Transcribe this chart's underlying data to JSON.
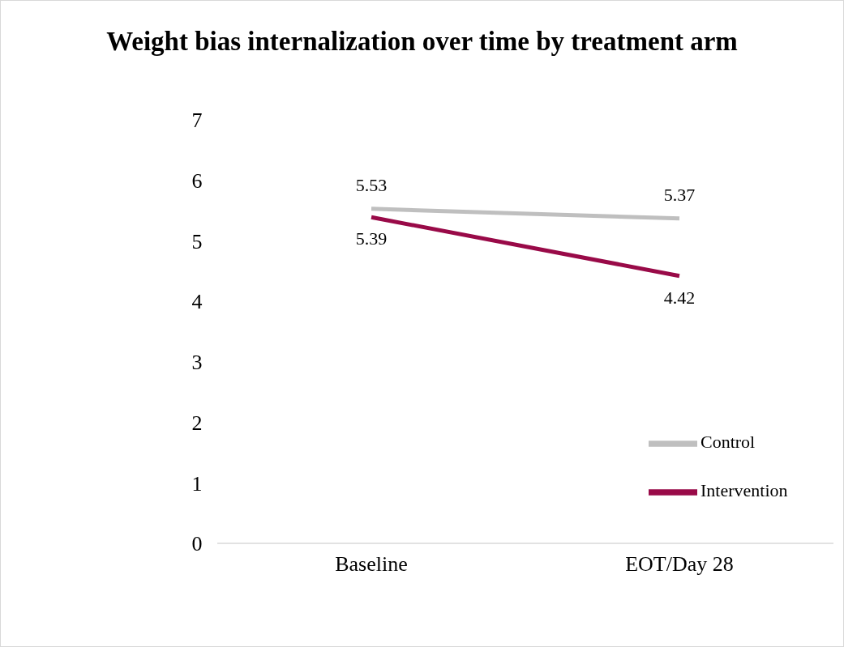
{
  "chart_data": {
    "type": "line",
    "title": "Weight bias internalization over time by treatment arm",
    "categories": [
      "Baseline",
      "EOT/Day 28"
    ],
    "series": [
      {
        "name": "Control",
        "color": "#bfbfbf",
        "values": [
          5.53,
          5.37
        ]
      },
      {
        "name": "Intervention",
        "color": "#990a48",
        "values": [
          5.39,
          4.42
        ]
      }
    ],
    "ylim": [
      0,
      7
    ],
    "yticks": [
      0,
      1,
      2,
      3,
      4,
      5,
      6,
      7
    ],
    "grid": false,
    "legend": "bottom right",
    "marker": "none",
    "line_style": "solid",
    "data_labels": true
  }
}
